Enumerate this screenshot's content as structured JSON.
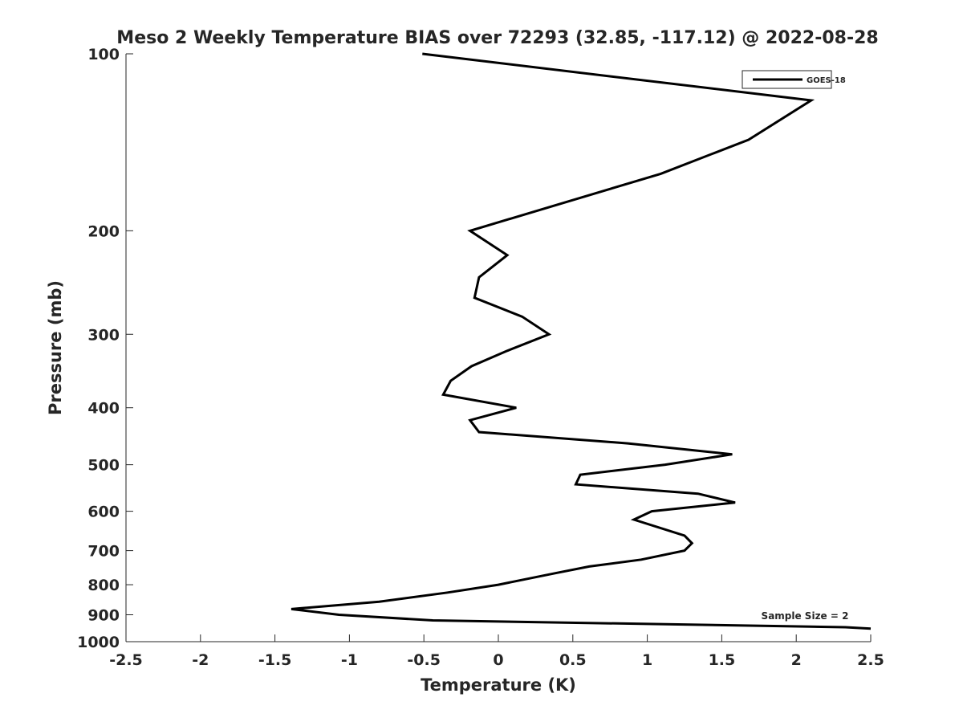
{
  "chart_data": {
    "type": "line",
    "title": "Meso 2 Weekly Temperature BIAS over 72293 (32.85, -117.12) @ 2022-08-28",
    "xlabel": "Temperature (K)",
    "ylabel": "Pressure (mb)",
    "xlim": [
      -2.5,
      2.5
    ],
    "ylim": [
      100,
      1000
    ],
    "yscale": "log",
    "y_reversed": true,
    "grid": false,
    "legend_position": "top-right",
    "xticks": [
      "-2.5",
      "-2",
      "-1.5",
      "-1",
      "-0.5",
      "0",
      "0.5",
      "1",
      "1.5",
      "2",
      "2.5"
    ],
    "xtick_values": [
      -2.5,
      -2,
      -1.5,
      -1,
      -0.5,
      0,
      0.5,
      1,
      1.5,
      2,
      2.5
    ],
    "yticks": [
      "100",
      "200",
      "300",
      "400",
      "500",
      "600",
      "700",
      "800",
      "900",
      "1000"
    ],
    "ytick_values": [
      100,
      200,
      300,
      400,
      500,
      600,
      700,
      800,
      900,
      1000
    ],
    "annotation": "Sample Size = 2",
    "series": [
      {
        "name": "GOES-18",
        "color": "#000000",
        "x": [
          -0.51,
          2.1,
          1.68,
          1.09,
          -0.19,
          0.06,
          -0.13,
          -0.16,
          0.16,
          0.34,
          0.06,
          -0.18,
          -0.32,
          -0.37,
          0.12,
          -0.19,
          -0.13,
          0.87,
          1.57,
          1.12,
          0.55,
          0.52,
          1.34,
          1.59,
          1.03,
          0.91,
          1.25,
          1.3,
          1.25,
          0.96,
          0.61,
          0.38,
          0.0,
          -0.34,
          -0.8,
          -1.39,
          -1.07,
          -0.44,
          2.33,
          2.5
        ],
        "y": [
          100,
          120,
          140,
          160,
          200,
          220,
          240,
          260,
          280,
          300,
          320,
          340,
          360,
          380,
          400,
          420,
          440,
          460,
          480,
          500,
          520,
          540,
          560,
          580,
          600,
          620,
          660,
          680,
          700,
          725,
          745,
          765,
          800,
          825,
          855,
          880,
          900,
          920,
          945,
          950
        ]
      }
    ]
  }
}
